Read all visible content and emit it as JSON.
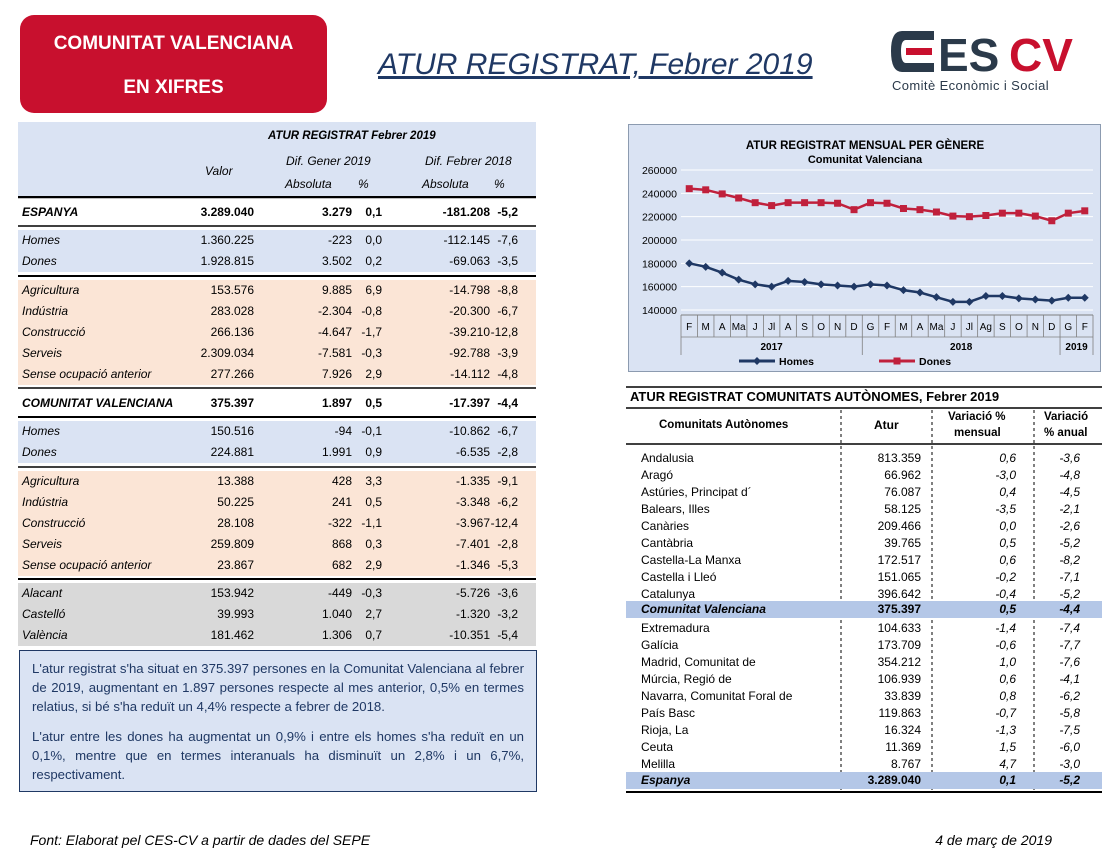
{
  "header": {
    "badge_line1": "COMUNITAT VALENCIANA",
    "badge_line2": "EN XIFRES",
    "title": "ATUR REGISTRAT, Febrer 2019",
    "logo_text": "CESCV",
    "logo_subtitle": "Comitè Econòmic i Social"
  },
  "left_table": {
    "title": "ATUR REGISTRAT Febrer 2019",
    "col_value": "Valor",
    "group1": "Dif. Gener 2019",
    "group2": "Dif. Febrer 2018",
    "sub_abs": "Absoluta",
    "sub_pct": "%",
    "rows": [
      {
        "label": "ESPANYA",
        "valor": "3.289.040",
        "abs1": "3.279",
        "pct1": "0,1",
        "abs2": "-181.208",
        "pct2": "-5,2"
      },
      {
        "label": "Homes",
        "valor": "1.360.225",
        "abs1": "-223",
        "pct1": "0,0",
        "abs2": "-112.145",
        "pct2": "-7,6"
      },
      {
        "label": "Dones",
        "valor": "1.928.815",
        "abs1": "3.502",
        "pct1": "0,2",
        "abs2": "-69.063",
        "pct2": "-3,5"
      },
      {
        "label": "Agricultura",
        "valor": "153.576",
        "abs1": "9.885",
        "pct1": "6,9",
        "abs2": "-14.798",
        "pct2": "-8,8"
      },
      {
        "label": "Indústria",
        "valor": "283.028",
        "abs1": "-2.304",
        "pct1": "-0,8",
        "abs2": "-20.300",
        "pct2": "-6,7"
      },
      {
        "label": "Construcció",
        "valor": "266.136",
        "abs1": "-4.647",
        "pct1": "-1,7",
        "abs2": "-39.210",
        "pct2": "-12,8"
      },
      {
        "label": "Serveis",
        "valor": "2.309.034",
        "abs1": "-7.581",
        "pct1": "-0,3",
        "abs2": "-92.788",
        "pct2": "-3,9"
      },
      {
        "label": "Sense ocupació anterior",
        "valor": "277.266",
        "abs1": "7.926",
        "pct1": "2,9",
        "abs2": "-14.112",
        "pct2": "-4,8"
      },
      {
        "label": "COMUNITAT VALENCIANA",
        "valor": "375.397",
        "abs1": "1.897",
        "pct1": "0,5",
        "abs2": "-17.397",
        "pct2": "-4,4"
      },
      {
        "label": "Homes",
        "valor": "150.516",
        "abs1": "-94",
        "pct1": "-0,1",
        "abs2": "-10.862",
        "pct2": "-6,7"
      },
      {
        "label": "Dones",
        "valor": "224.881",
        "abs1": "1.991",
        "pct1": "0,9",
        "abs2": "-6.535",
        "pct2": "-2,8"
      },
      {
        "label": "Agricultura",
        "valor": "13.388",
        "abs1": "428",
        "pct1": "3,3",
        "abs2": "-1.335",
        "pct2": "-9,1"
      },
      {
        "label": "Indústria",
        "valor": "50.225",
        "abs1": "241",
        "pct1": "0,5",
        "abs2": "-3.348",
        "pct2": "-6,2"
      },
      {
        "label": "Construcció",
        "valor": "28.108",
        "abs1": "-322",
        "pct1": "-1,1",
        "abs2": "-3.967",
        "pct2": "-12,4"
      },
      {
        "label": "Serveis",
        "valor": "259.809",
        "abs1": "868",
        "pct1": "0,3",
        "abs2": "-7.401",
        "pct2": "-2,8"
      },
      {
        "label": "Sense ocupació anterior",
        "valor": "23.867",
        "abs1": "682",
        "pct1": "2,9",
        "abs2": "-1.346",
        "pct2": "-5,3"
      },
      {
        "label": "Alacant",
        "valor": "153.942",
        "abs1": "-449",
        "pct1": "-0,3",
        "abs2": "-5.726",
        "pct2": "-3,6"
      },
      {
        "label": "Castelló",
        "valor": "39.993",
        "abs1": "1.040",
        "pct1": "2,7",
        "abs2": "-1.320",
        "pct2": "-3,2"
      },
      {
        "label": "València",
        "valor": "181.462",
        "abs1": "1.306",
        "pct1": "0,7",
        "abs2": "-10.351",
        "pct2": "-5,4"
      }
    ]
  },
  "summary": {
    "p1": "L'atur registrat s'ha situat en 375.397 persones en la Comunitat Valenciana al febrer de 2019, augmentant en 1.897 persones respecte al mes anterior, 0,5% en termes relatius, si bé s'ha reduït un 4,4% respecte a febrer de 2018.",
    "p2": "L'atur entre les dones ha augmentat un 0,9% i entre els homes s'ha reduït en un 0,1%, mentre que en termes interanuals ha disminuït un 2,8% i un 6,7%, respectivament."
  },
  "chart_data": {
    "type": "line",
    "title": "ATUR REGISTRAT MENSUAL PER GÈNERE",
    "subtitle": "Comunitat Valenciana",
    "x": [
      "F",
      "M",
      "A",
      "Ma",
      "J",
      "Jl",
      "A",
      "S",
      "O",
      "N",
      "D",
      "G",
      "F",
      "M",
      "A",
      "Ma",
      "J",
      "Jl",
      "Ag",
      "S",
      "O",
      "N",
      "D",
      "G",
      "F"
    ],
    "year_labels": [
      "2017",
      "2018",
      "2019"
    ],
    "ylim": [
      140000,
      260000
    ],
    "yticks": [
      "260000",
      "240000",
      "220000",
      "200000",
      "180000",
      "160000",
      "140000"
    ],
    "series": [
      {
        "name": "Homes",
        "color": "#1f3864",
        "values": [
          180000,
          177000,
          172000,
          166000,
          162000,
          160000,
          165000,
          164000,
          162000,
          161000,
          160000,
          162000,
          161000,
          157000,
          155000,
          151000,
          147000,
          147000,
          152000,
          152000,
          150000,
          149000,
          148000,
          150500,
          150500
        ]
      },
      {
        "name": "Dones",
        "color": "#c0203c",
        "values": [
          244000,
          243000,
          239500,
          236000,
          232000,
          229500,
          232000,
          232000,
          232000,
          231500,
          226000,
          232000,
          231500,
          227000,
          226000,
          224000,
          220500,
          220000,
          221000,
          223000,
          223000,
          220500,
          216500,
          223000,
          225000
        ]
      }
    ],
    "legend": "bottom"
  },
  "regions": {
    "title": "ATUR REGISTRAT COMUNITATS AUTÒNOMES, Febrer 2019",
    "col_name": "Comunitats Autònomes",
    "col_atur": "Atur",
    "col_mon_1": "Variació %",
    "col_mon_2": "mensual",
    "col_ann_1": "Variació",
    "col_ann_2": "% anual",
    "rows": [
      {
        "name": "Andalusia",
        "atur": "813.359",
        "mon": "0,6",
        "ann": "-3,6"
      },
      {
        "name": "Aragó",
        "atur": "66.962",
        "mon": "-3,0",
        "ann": "-4,8"
      },
      {
        "name": "Astúries, Principat d´",
        "atur": "76.087",
        "mon": "0,4",
        "ann": "-4,5"
      },
      {
        "name": "Balears, Illes",
        "atur": "58.125",
        "mon": "-3,5",
        "ann": "-2,1"
      },
      {
        "name": "Canàries",
        "atur": "209.466",
        "mon": "0,0",
        "ann": "-2,6"
      },
      {
        "name": "Cantàbria",
        "atur": "39.765",
        "mon": "0,5",
        "ann": "-5,2"
      },
      {
        "name": "Castella-La Manxa",
        "atur": "172.517",
        "mon": "0,6",
        "ann": "-8,2"
      },
      {
        "name": "Castella i Lleó",
        "atur": "151.065",
        "mon": "-0,2",
        "ann": "-7,1"
      },
      {
        "name": "Catalunya",
        "atur": "396.642",
        "mon": "-0,4",
        "ann": "-5,2"
      },
      {
        "name": "Comunitat Valenciana",
        "atur": "375.397",
        "mon": "0,5",
        "ann": "-4,4",
        "highlight": true
      },
      {
        "name": "Extremadura",
        "atur": "104.633",
        "mon": "-1,4",
        "ann": "-7,4"
      },
      {
        "name": "Galícia",
        "atur": "173.709",
        "mon": "-0,6",
        "ann": "-7,7"
      },
      {
        "name": "Madrid, Comunitat de",
        "atur": "354.212",
        "mon": "1,0",
        "ann": "-7,6"
      },
      {
        "name": "Múrcia, Regió de",
        "atur": "106.939",
        "mon": "0,6",
        "ann": "-4,1"
      },
      {
        "name": "Navarra, Comunitat Foral de",
        "atur": "33.839",
        "mon": "0,8",
        "ann": "-6,2"
      },
      {
        "name": "País Basc",
        "atur": "119.863",
        "mon": "-0,7",
        "ann": "-5,8"
      },
      {
        "name": "Rioja, La",
        "atur": "16.324",
        "mon": "-1,3",
        "ann": "-7,5"
      },
      {
        "name": "Ceuta",
        "atur": "11.369",
        "mon": "1,5",
        "ann": "-6,0"
      },
      {
        "name": "Melilla",
        "atur": "8.767",
        "mon": "4,7",
        "ann": "-3,0"
      },
      {
        "name": "Espanya",
        "atur": "3.289.040",
        "mon": "0,1",
        "ann": "-5,2",
        "highlight": true
      }
    ]
  },
  "footer": {
    "source": "Font: Elaborat pel CES-CV a partir de dades del SEPE",
    "date": "4 de març de 2019"
  }
}
